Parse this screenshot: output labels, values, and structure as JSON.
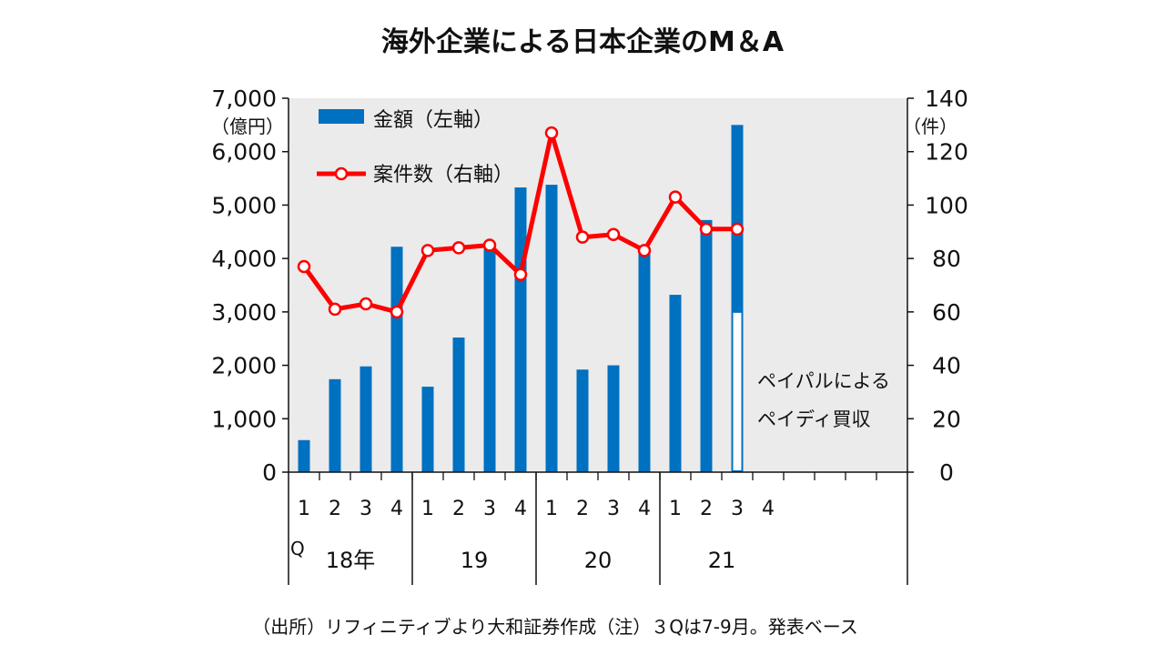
{
  "chart_data": {
    "type": "bar+line",
    "title": "海外企業による日本企業のM＆A",
    "left_axis": {
      "unit": "（億円）",
      "ylim": [
        0,
        7000
      ],
      "ticks": [
        "0",
        "1,000",
        "2,000",
        "3,000",
        "4,000",
        "5,000",
        "6,000",
        "7,000"
      ]
    },
    "right_axis": {
      "unit": "（件）",
      "ylim": [
        0,
        140
      ],
      "ticks": [
        "0",
        "20",
        "40",
        "60",
        "80",
        "100",
        "120",
        "140"
      ]
    },
    "quarter_labels": [
      "1",
      "2",
      "3",
      "4",
      "1",
      "2",
      "3",
      "4",
      "1",
      "2",
      "3",
      "4",
      "1",
      "2",
      "3",
      "4"
    ],
    "quarter_mark": "Q",
    "year_labels": [
      "18年",
      "19",
      "20",
      "21"
    ],
    "series": [
      {
        "name": "金額（左軸）",
        "type": "bar",
        "axis": "left",
        "color": "#0070c0",
        "values": [
          600,
          1740,
          1980,
          4220,
          1600,
          2520,
          4230,
          5330,
          5380,
          1920,
          2000,
          4150,
          3320,
          4720,
          6500
        ]
      },
      {
        "name": "案件数（右軸）",
        "type": "line",
        "axis": "right",
        "color": "#ff0000",
        "values": [
          77,
          61,
          63,
          60,
          83,
          84,
          85,
          74,
          127,
          88,
          89,
          83,
          103,
          91,
          91
        ]
      }
    ],
    "highlight": {
      "index": 14,
      "value": 3000,
      "note_lines": [
        "ペイパルによる",
        "ペイディ買収"
      ]
    },
    "background": "#ebebeb",
    "legend_position": "top-left"
  },
  "footnote": "（出所）リフィニティブより大和証券作成（注）３Qは7-9月。発表ベース"
}
